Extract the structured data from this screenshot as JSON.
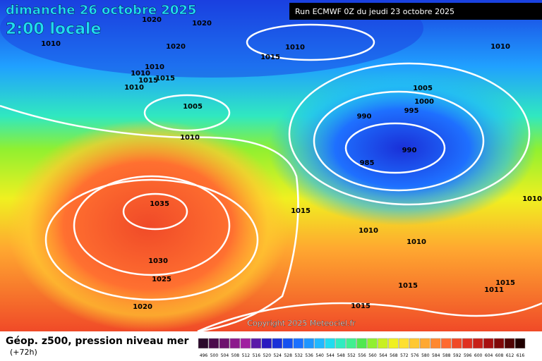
{
  "header": {
    "date": "dimanche 26 octobre 2025",
    "time": "2:00 locale",
    "run": "Run ECMWF 0Z du jeudi 23 octobre 2025"
  },
  "copyright": "Copyright 2025 Meteociel.fr",
  "footer": {
    "title": "Géop. z500, pression niveau mer",
    "lead": "(+72h)"
  },
  "isobar_labels": [
    1020,
    1020,
    1010,
    1020,
    1010,
    1015,
    1010,
    1010,
    1010,
    1015,
    1015,
    1010,
    1005,
    1000,
    1005,
    995,
    990,
    1010,
    990,
    985,
    1035,
    1015,
    1010,
    1010,
    1010,
    1030,
    1025,
    1015,
    1015,
    1011,
    1020,
    1015
  ],
  "legend": {
    "values": [
      496,
      500,
      504,
      508,
      512,
      516,
      520,
      524,
      528,
      532,
      536,
      540,
      544,
      548,
      552,
      556,
      560,
      564,
      568,
      572,
      576,
      580,
      584,
      588,
      592,
      596,
      600,
      604,
      608,
      612,
      616
    ],
    "colors": [
      "#2b0a2b",
      "#4a0a4a",
      "#6e126e",
      "#8c1a8c",
      "#a020a0",
      "#5a1aa8",
      "#2a1ac0",
      "#1a30d8",
      "#1450f0",
      "#1a70ff",
      "#1e96ff",
      "#20b8ff",
      "#20dcf0",
      "#30ecc0",
      "#40f090",
      "#50e850",
      "#90f030",
      "#c8f020",
      "#f0f020",
      "#ffe030",
      "#ffc830",
      "#ffa830",
      "#ff8830",
      "#ff6a30",
      "#f04a28",
      "#e03020",
      "#c82018",
      "#a81010",
      "#800808",
      "#500404",
      "#200000"
    ]
  }
}
